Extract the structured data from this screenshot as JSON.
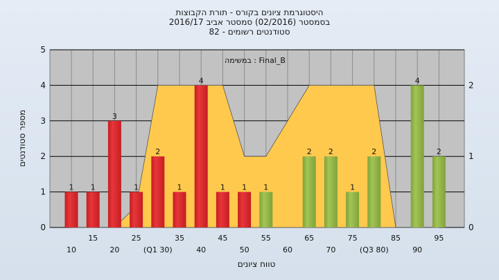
{
  "chart_data": {
    "type": "bar",
    "title_lines": [
      "היסטוגרמת ציונים בקורס - תורת הקבוצות",
      "בסמסטר  (02/2016)  סמסטר אביב 2016/17",
      "סטודנטים רשומים - 82"
    ],
    "task_label": "במשימה : Final_B",
    "ylabel": "מספר סטודנטים",
    "xlabel": "טווח ציונים",
    "ylim": [
      0,
      5
    ],
    "yticks": [
      "0",
      "1",
      "2",
      "3",
      "4",
      "5"
    ],
    "y2lim": [
      0,
      2.5
    ],
    "y2ticks": [
      "0",
      "1",
      "2"
    ],
    "categories": [
      "10",
      "15",
      "20",
      "25",
      "(Q1 30)",
      "35",
      "40",
      "45",
      "50",
      "55",
      "60",
      "65",
      "70",
      "75",
      "(Q3 80)",
      "85",
      "90",
      "95"
    ],
    "values": [
      1,
      1,
      3,
      1,
      2,
      1,
      4,
      1,
      1,
      1,
      0,
      2,
      2,
      1,
      2,
      0,
      4,
      2
    ],
    "bar_colors": [
      "red",
      "red",
      "red",
      "red",
      "red",
      "red",
      "red",
      "red",
      "red",
      "green",
      "green",
      "green",
      "green",
      "green",
      "green",
      "green",
      "green",
      "green"
    ],
    "area_values": [
      0,
      0,
      0,
      0.3,
      2,
      2,
      2,
      2,
      1,
      1,
      1.5,
      2,
      2,
      2,
      2,
      0,
      0,
      0
    ],
    "colors": {
      "red_bar": "#e8363a",
      "green_bar": "#a3c456",
      "area_fill": "#ffc94d",
      "plot_bg": "#c2c2c2",
      "grid": "#8c8c8c"
    }
  }
}
